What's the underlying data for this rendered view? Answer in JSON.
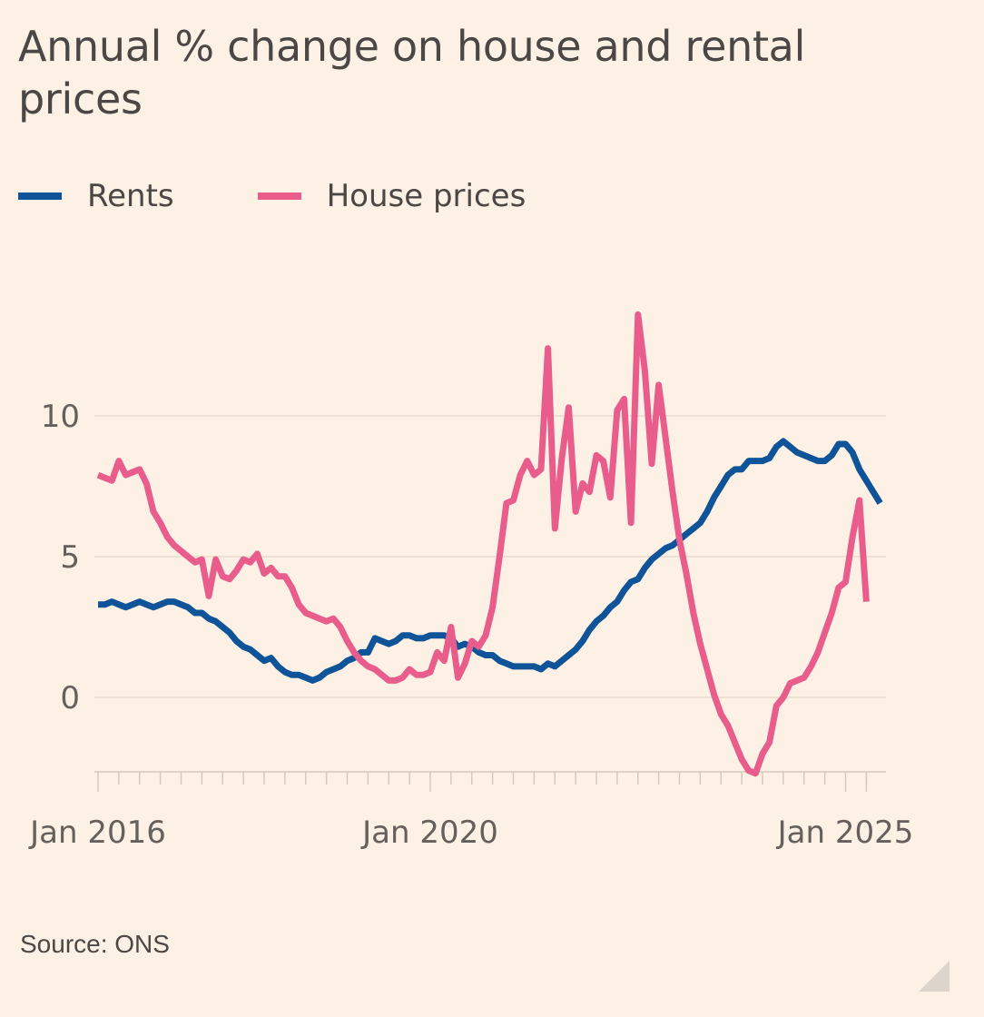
{
  "chart_data": {
    "type": "line",
    "title": "Annual % change on house and rental prices",
    "xlabel": "",
    "ylabel": "",
    "x_unit": "months since Jan 2016",
    "x_range": [
      0,
      111
    ],
    "ylim": [
      -2.6,
      14
    ],
    "y_ticks": [
      0,
      5,
      10
    ],
    "x_tick_labels": [
      {
        "label": "Jan 2016",
        "x": 0
      },
      {
        "label": "Jan 2020",
        "x": 48
      },
      {
        "label": "Jan 2025",
        "x": 108
      }
    ],
    "grid": true,
    "legend_position": "top-left",
    "series": [
      {
        "name": "Rents",
        "color": "#0f5499",
        "points": [
          [
            0,
            3.3
          ],
          [
            1,
            3.3
          ],
          [
            2,
            3.4
          ],
          [
            3,
            3.3
          ],
          [
            4,
            3.2
          ],
          [
            5,
            3.3
          ],
          [
            6,
            3.4
          ],
          [
            7,
            3.3
          ],
          [
            8,
            3.2
          ],
          [
            9,
            3.3
          ],
          [
            10,
            3.4
          ],
          [
            11,
            3.4
          ],
          [
            12,
            3.3
          ],
          [
            13,
            3.2
          ],
          [
            14,
            3.0
          ],
          [
            15,
            3.0
          ],
          [
            16,
            2.8
          ],
          [
            17,
            2.7
          ],
          [
            18,
            2.5
          ],
          [
            19,
            2.3
          ],
          [
            20,
            2.0
          ],
          [
            21,
            1.8
          ],
          [
            22,
            1.7
          ],
          [
            23,
            1.5
          ],
          [
            24,
            1.3
          ],
          [
            25,
            1.4
          ],
          [
            26,
            1.1
          ],
          [
            27,
            0.9
          ],
          [
            28,
            0.8
          ],
          [
            29,
            0.8
          ],
          [
            30,
            0.7
          ],
          [
            31,
            0.6
          ],
          [
            32,
            0.7
          ],
          [
            33,
            0.9
          ],
          [
            34,
            1.0
          ],
          [
            35,
            1.1
          ],
          [
            36,
            1.3
          ],
          [
            37,
            1.4
          ],
          [
            38,
            1.6
          ],
          [
            39,
            1.6
          ],
          [
            40,
            2.1
          ],
          [
            41,
            2.0
          ],
          [
            42,
            1.9
          ],
          [
            43,
            2.0
          ],
          [
            44,
            2.2
          ],
          [
            45,
            2.2
          ],
          [
            46,
            2.1
          ],
          [
            47,
            2.1
          ],
          [
            48,
            2.2
          ],
          [
            49,
            2.2
          ],
          [
            50,
            2.2
          ],
          [
            51,
            2.1
          ],
          [
            52,
            1.8
          ],
          [
            53,
            1.9
          ],
          [
            54,
            1.8
          ],
          [
            55,
            1.6
          ],
          [
            56,
            1.5
          ],
          [
            57,
            1.5
          ],
          [
            58,
            1.3
          ],
          [
            59,
            1.2
          ],
          [
            60,
            1.1
          ],
          [
            61,
            1.1
          ],
          [
            62,
            1.1
          ],
          [
            63,
            1.1
          ],
          [
            64,
            1.0
          ],
          [
            65,
            1.2
          ],
          [
            66,
            1.1
          ],
          [
            67,
            1.3
          ],
          [
            68,
            1.5
          ],
          [
            69,
            1.7
          ],
          [
            70,
            2.0
          ],
          [
            71,
            2.4
          ],
          [
            72,
            2.7
          ],
          [
            73,
            2.9
          ],
          [
            74,
            3.2
          ],
          [
            75,
            3.4
          ],
          [
            76,
            3.8
          ],
          [
            77,
            4.1
          ],
          [
            78,
            4.2
          ],
          [
            79,
            4.6
          ],
          [
            80,
            4.9
          ],
          [
            81,
            5.1
          ],
          [
            82,
            5.3
          ],
          [
            83,
            5.4
          ],
          [
            84,
            5.6
          ],
          [
            85,
            5.8
          ],
          [
            86,
            6.0
          ],
          [
            87,
            6.2
          ],
          [
            88,
            6.6
          ],
          [
            89,
            7.1
          ],
          [
            90,
            7.5
          ],
          [
            91,
            7.9
          ],
          [
            92,
            8.1
          ],
          [
            93,
            8.1
          ],
          [
            94,
            8.4
          ],
          [
            95,
            8.4
          ],
          [
            96,
            8.4
          ],
          [
            97,
            8.5
          ],
          [
            98,
            8.9
          ],
          [
            99,
            9.1
          ],
          [
            100,
            8.9
          ],
          [
            101,
            8.7
          ],
          [
            102,
            8.6
          ],
          [
            103,
            8.5
          ],
          [
            104,
            8.4
          ],
          [
            105,
            8.4
          ],
          [
            106,
            8.6
          ],
          [
            107,
            9.0
          ],
          [
            108,
            9.0
          ],
          [
            109,
            8.7
          ],
          [
            110,
            8.1
          ],
          [
            111,
            7.7
          ],
          [
            112,
            7.3
          ],
          [
            113,
            6.9
          ]
        ]
      },
      {
        "name": "House prices",
        "color": "#e95d8c",
        "points": [
          [
            0,
            7.9
          ],
          [
            1,
            7.8
          ],
          [
            2,
            7.7
          ],
          [
            3,
            8.4
          ],
          [
            4,
            7.9
          ],
          [
            5,
            8.0
          ],
          [
            6,
            8.1
          ],
          [
            7,
            7.6
          ],
          [
            8,
            6.6
          ],
          [
            9,
            6.2
          ],
          [
            10,
            5.7
          ],
          [
            11,
            5.4
          ],
          [
            12,
            5.2
          ],
          [
            13,
            5.0
          ],
          [
            14,
            4.8
          ],
          [
            15,
            4.9
          ],
          [
            16,
            3.6
          ],
          [
            17,
            4.9
          ],
          [
            18,
            4.3
          ],
          [
            19,
            4.2
          ],
          [
            20,
            4.5
          ],
          [
            21,
            4.9
          ],
          [
            22,
            4.8
          ],
          [
            23,
            5.1
          ],
          [
            24,
            4.4
          ],
          [
            25,
            4.6
          ],
          [
            26,
            4.3
          ],
          [
            27,
            4.3
          ],
          [
            28,
            3.9
          ],
          [
            29,
            3.3
          ],
          [
            30,
            3.0
          ],
          [
            31,
            2.9
          ],
          [
            32,
            2.8
          ],
          [
            33,
            2.7
          ],
          [
            34,
            2.8
          ],
          [
            35,
            2.5
          ],
          [
            36,
            2.0
          ],
          [
            37,
            1.6
          ],
          [
            38,
            1.3
          ],
          [
            39,
            1.1
          ],
          [
            40,
            1.0
          ],
          [
            41,
            0.8
          ],
          [
            42,
            0.6
          ],
          [
            43,
            0.6
          ],
          [
            44,
            0.7
          ],
          [
            45,
            1.0
          ],
          [
            46,
            0.8
          ],
          [
            47,
            0.8
          ],
          [
            48,
            0.9
          ],
          [
            49,
            1.6
          ],
          [
            50,
            1.3
          ],
          [
            51,
            2.5
          ],
          [
            52,
            0.7
          ],
          [
            53,
            1.2
          ],
          [
            54,
            2.0
          ],
          [
            55,
            1.8
          ],
          [
            56,
            2.2
          ],
          [
            57,
            3.2
          ],
          [
            58,
            5.0
          ],
          [
            59,
            6.9
          ],
          [
            60,
            7.0
          ],
          [
            61,
            7.9
          ],
          [
            62,
            8.4
          ],
          [
            63,
            7.9
          ],
          [
            64,
            8.1
          ],
          [
            65,
            12.4
          ],
          [
            66,
            6.0
          ],
          [
            67,
            8.5
          ],
          [
            68,
            10.3
          ],
          [
            69,
            6.6
          ],
          [
            70,
            7.6
          ],
          [
            71,
            7.3
          ],
          [
            72,
            8.6
          ],
          [
            73,
            8.4
          ],
          [
            74,
            7.1
          ],
          [
            75,
            10.2
          ],
          [
            76,
            10.6
          ],
          [
            77,
            6.2
          ],
          [
            78,
            13.6
          ],
          [
            79,
            11.6
          ],
          [
            80,
            8.3
          ],
          [
            81,
            11.1
          ],
          [
            82,
            9.2
          ],
          [
            83,
            7.3
          ],
          [
            84,
            5.6
          ],
          [
            85,
            4.4
          ],
          [
            86,
            3.0
          ],
          [
            87,
            1.9
          ],
          [
            88,
            1.0
          ],
          [
            89,
            0.1
          ],
          [
            90,
            -0.6
          ],
          [
            91,
            -1.0
          ],
          [
            92,
            -1.6
          ],
          [
            93,
            -2.2
          ],
          [
            94,
            -2.6
          ],
          [
            95,
            -2.7
          ],
          [
            96,
            -2.0
          ],
          [
            97,
            -1.6
          ],
          [
            98,
            -0.3
          ],
          [
            99,
            0.0
          ],
          [
            100,
            0.5
          ],
          [
            101,
            0.6
          ],
          [
            102,
            0.7
          ],
          [
            103,
            1.1
          ],
          [
            104,
            1.6
          ],
          [
            105,
            2.3
          ],
          [
            106,
            3.0
          ],
          [
            107,
            3.9
          ],
          [
            108,
            4.1
          ],
          [
            109,
            5.7
          ],
          [
            110,
            7.0
          ],
          [
            111,
            3.4
          ]
        ]
      }
    ],
    "source": "Source: ONS"
  },
  "legend": {
    "items": [
      {
        "label": "Rents",
        "color": "#0f5499"
      },
      {
        "label": "House prices",
        "color": "#e95d8c"
      }
    ]
  },
  "y_tick_labels": [
    "0",
    "5",
    "10"
  ],
  "colors": {
    "background": "#fdf1e6",
    "gridline": "#eee0d3",
    "axis": "#d6c8bb"
  }
}
